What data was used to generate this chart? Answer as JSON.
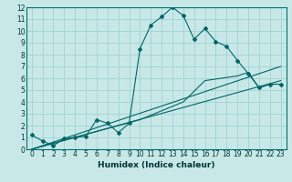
{
  "title": "",
  "xlabel": "Humidex (Indice chaleur)",
  "bg_color": "#c8e8e8",
  "grid_color": "#a8d4d4",
  "line_color": "#006666",
  "xlim": [
    -0.5,
    23.5
  ],
  "ylim": [
    0,
    12
  ],
  "xticks": [
    0,
    1,
    2,
    3,
    4,
    5,
    6,
    7,
    8,
    9,
    10,
    11,
    12,
    13,
    14,
    15,
    16,
    17,
    18,
    19,
    20,
    21,
    22,
    23
  ],
  "yticks": [
    0,
    1,
    2,
    3,
    4,
    5,
    6,
    7,
    8,
    9,
    10,
    11,
    12
  ],
  "line1_x": [
    0,
    1,
    2,
    3,
    4,
    5,
    6,
    7,
    8,
    9,
    10,
    11,
    12,
    13,
    14,
    15,
    16,
    17,
    18,
    19,
    20,
    21,
    22,
    23
  ],
  "line1_y": [
    1.2,
    0.7,
    0.3,
    0.9,
    1.0,
    1.1,
    2.5,
    2.2,
    1.4,
    2.2,
    8.5,
    10.5,
    11.2,
    12.0,
    11.3,
    9.3,
    10.2,
    9.1,
    8.7,
    7.5,
    6.4,
    5.2,
    5.5,
    5.5
  ],
  "line2_x": [
    0,
    23
  ],
  "line2_y": [
    0.0,
    7.0
  ],
  "line3_x": [
    0,
    23
  ],
  "line3_y": [
    0.0,
    5.8
  ],
  "line4_x": [
    0,
    10,
    14,
    16,
    19,
    20,
    21,
    22,
    23
  ],
  "line4_y": [
    0.0,
    2.5,
    4.0,
    5.8,
    6.2,
    6.5,
    5.2,
    5.5,
    5.5
  ],
  "tick_fontsize": 5.5,
  "xlabel_fontsize": 6.5
}
